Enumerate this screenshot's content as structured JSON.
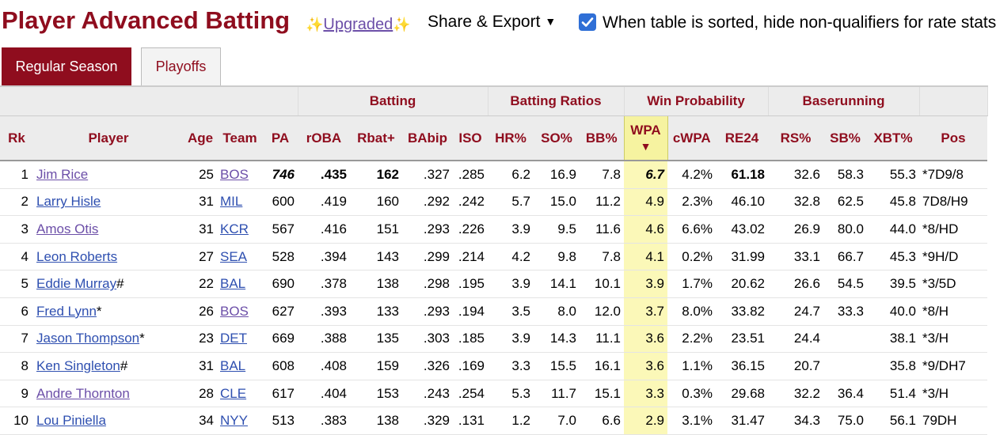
{
  "header": {
    "title": "Player Advanced Batting",
    "upgraded_prefix": "✨",
    "upgraded_label": "Upgraded",
    "upgraded_suffix": "✨",
    "share_label": "Share & Export",
    "share_caret": "▼",
    "checkbox_label": "When table is sorted, hide non-qualifiers for rate stats",
    "checkbox_checked": true
  },
  "tabs": [
    {
      "label": "Regular Season",
      "active": true
    },
    {
      "label": "Playoffs",
      "active": false
    }
  ],
  "table": {
    "groups": {
      "batting": "Batting",
      "batting_ratios": "Batting Ratios",
      "win_probability": "Win Probability",
      "baserunning": "Baserunning"
    },
    "columns": {
      "rk": "Rk",
      "player": "Player",
      "age": "Age",
      "team": "Team",
      "pa": "PA",
      "roba": "rOBA",
      "rbat": "Rbat+",
      "babip": "BAbip",
      "iso": "ISO",
      "hr": "HR%",
      "so": "SO%",
      "bb": "BB%",
      "wpa": "WPA",
      "wpa_sort": "▼",
      "cwpa": "cWPA",
      "re24": "RE24",
      "rs": "RS%",
      "sb": "SB%",
      "xbt": "XBT%",
      "pos": "Pos"
    },
    "rows": [
      {
        "rk": "1",
        "player": "Jim Rice",
        "mark": "",
        "age": "25",
        "team": "BOS",
        "pa": "746",
        "roba": ".435",
        "rbat": "162",
        "babip": ".327",
        "iso": ".285",
        "hr": "6.2",
        "so": "16.9",
        "bb": "7.8",
        "wpa": "6.7",
        "cwpa": "4.2%",
        "re24": "61.18",
        "rs": "32.6",
        "sb": "58.3",
        "xbt": "55.3",
        "pos": "*7D9/8"
      },
      {
        "rk": "2",
        "player": "Larry Hisle",
        "mark": "",
        "age": "31",
        "team": "MIL",
        "pa": "600",
        "roba": ".419",
        "rbat": "160",
        "babip": ".292",
        "iso": ".242",
        "hr": "5.7",
        "so": "15.0",
        "bb": "11.2",
        "wpa": "4.9",
        "cwpa": "2.3%",
        "re24": "46.10",
        "rs": "32.8",
        "sb": "62.5",
        "xbt": "45.8",
        "pos": "7D8/H9"
      },
      {
        "rk": "3",
        "player": "Amos Otis",
        "mark": "",
        "age": "31",
        "team": "KCR",
        "pa": "567",
        "roba": ".416",
        "rbat": "151",
        "babip": ".293",
        "iso": ".226",
        "hr": "3.9",
        "so": "9.5",
        "bb": "11.6",
        "wpa": "4.6",
        "cwpa": "6.6%",
        "re24": "43.02",
        "rs": "26.9",
        "sb": "80.0",
        "xbt": "44.0",
        "pos": "*8/HD"
      },
      {
        "rk": "4",
        "player": "Leon Roberts",
        "mark": "",
        "age": "27",
        "team": "SEA",
        "pa": "528",
        "roba": ".394",
        "rbat": "143",
        "babip": ".299",
        "iso": ".214",
        "hr": "4.2",
        "so": "9.8",
        "bb": "7.8",
        "wpa": "4.1",
        "cwpa": "0.2%",
        "re24": "31.99",
        "rs": "33.1",
        "sb": "66.7",
        "xbt": "45.3",
        "pos": "*9H/D"
      },
      {
        "rk": "5",
        "player": "Eddie Murray",
        "mark": "#",
        "age": "22",
        "team": "BAL",
        "pa": "690",
        "roba": ".378",
        "rbat": "138",
        "babip": ".298",
        "iso": ".195",
        "hr": "3.9",
        "so": "14.1",
        "bb": "10.1",
        "wpa": "3.9",
        "cwpa": "1.7%",
        "re24": "20.62",
        "rs": "26.6",
        "sb": "54.5",
        "xbt": "39.5",
        "pos": "*3/5D"
      },
      {
        "rk": "6",
        "player": "Fred Lynn",
        "mark": "*",
        "age": "26",
        "team": "BOS",
        "pa": "627",
        "roba": ".393",
        "rbat": "133",
        "babip": ".293",
        "iso": ".194",
        "hr": "3.5",
        "so": "8.0",
        "bb": "12.0",
        "wpa": "3.7",
        "cwpa": "8.0%",
        "re24": "33.82",
        "rs": "24.7",
        "sb": "33.3",
        "xbt": "40.0",
        "pos": "*8/H"
      },
      {
        "rk": "7",
        "player": "Jason Thompson",
        "mark": "*",
        "age": "23",
        "team": "DET",
        "pa": "669",
        "roba": ".388",
        "rbat": "135",
        "babip": ".303",
        "iso": ".185",
        "hr": "3.9",
        "so": "14.3",
        "bb": "11.1",
        "wpa": "3.6",
        "cwpa": "2.2%",
        "re24": "23.51",
        "rs": "24.4",
        "sb": "",
        "xbt": "38.1",
        "pos": "*3/H"
      },
      {
        "rk": "8",
        "player": "Ken Singleton",
        "mark": "#",
        "age": "31",
        "team": "BAL",
        "pa": "608",
        "roba": ".408",
        "rbat": "159",
        "babip": ".326",
        "iso": ".169",
        "hr": "3.3",
        "so": "15.5",
        "bb": "16.1",
        "wpa": "3.6",
        "cwpa": "1.1%",
        "re24": "36.15",
        "rs": "20.7",
        "sb": "",
        "xbt": "35.8",
        "pos": "*9/DH7"
      },
      {
        "rk": "9",
        "player": "Andre Thornton",
        "mark": "",
        "age": "28",
        "team": "CLE",
        "pa": "617",
        "roba": ".404",
        "rbat": "153",
        "babip": ".243",
        "iso": ".254",
        "hr": "5.3",
        "so": "11.7",
        "bb": "15.1",
        "wpa": "3.3",
        "cwpa": "0.3%",
        "re24": "29.68",
        "rs": "32.2",
        "sb": "36.4",
        "xbt": "51.4",
        "pos": "*3/H"
      },
      {
        "rk": "10",
        "player": "Lou Piniella",
        "mark": "",
        "age": "34",
        "team": "NYY",
        "pa": "513",
        "roba": ".383",
        "rbat": "138",
        "babip": ".329",
        "iso": ".131",
        "hr": "1.2",
        "so": "7.0",
        "bb": "6.6",
        "wpa": "2.9",
        "cwpa": "3.1%",
        "re24": "31.47",
        "rs": "34.3",
        "sb": "75.0",
        "xbt": "56.1",
        "pos": "79DH"
      }
    ]
  },
  "colors": {
    "brand": "#8f0d1e",
    "link": "#2e4fb0",
    "visited_link": "#6c4fa8",
    "sort_highlight": "#fbf8b8",
    "checkbox": "#2f6fd6"
  }
}
